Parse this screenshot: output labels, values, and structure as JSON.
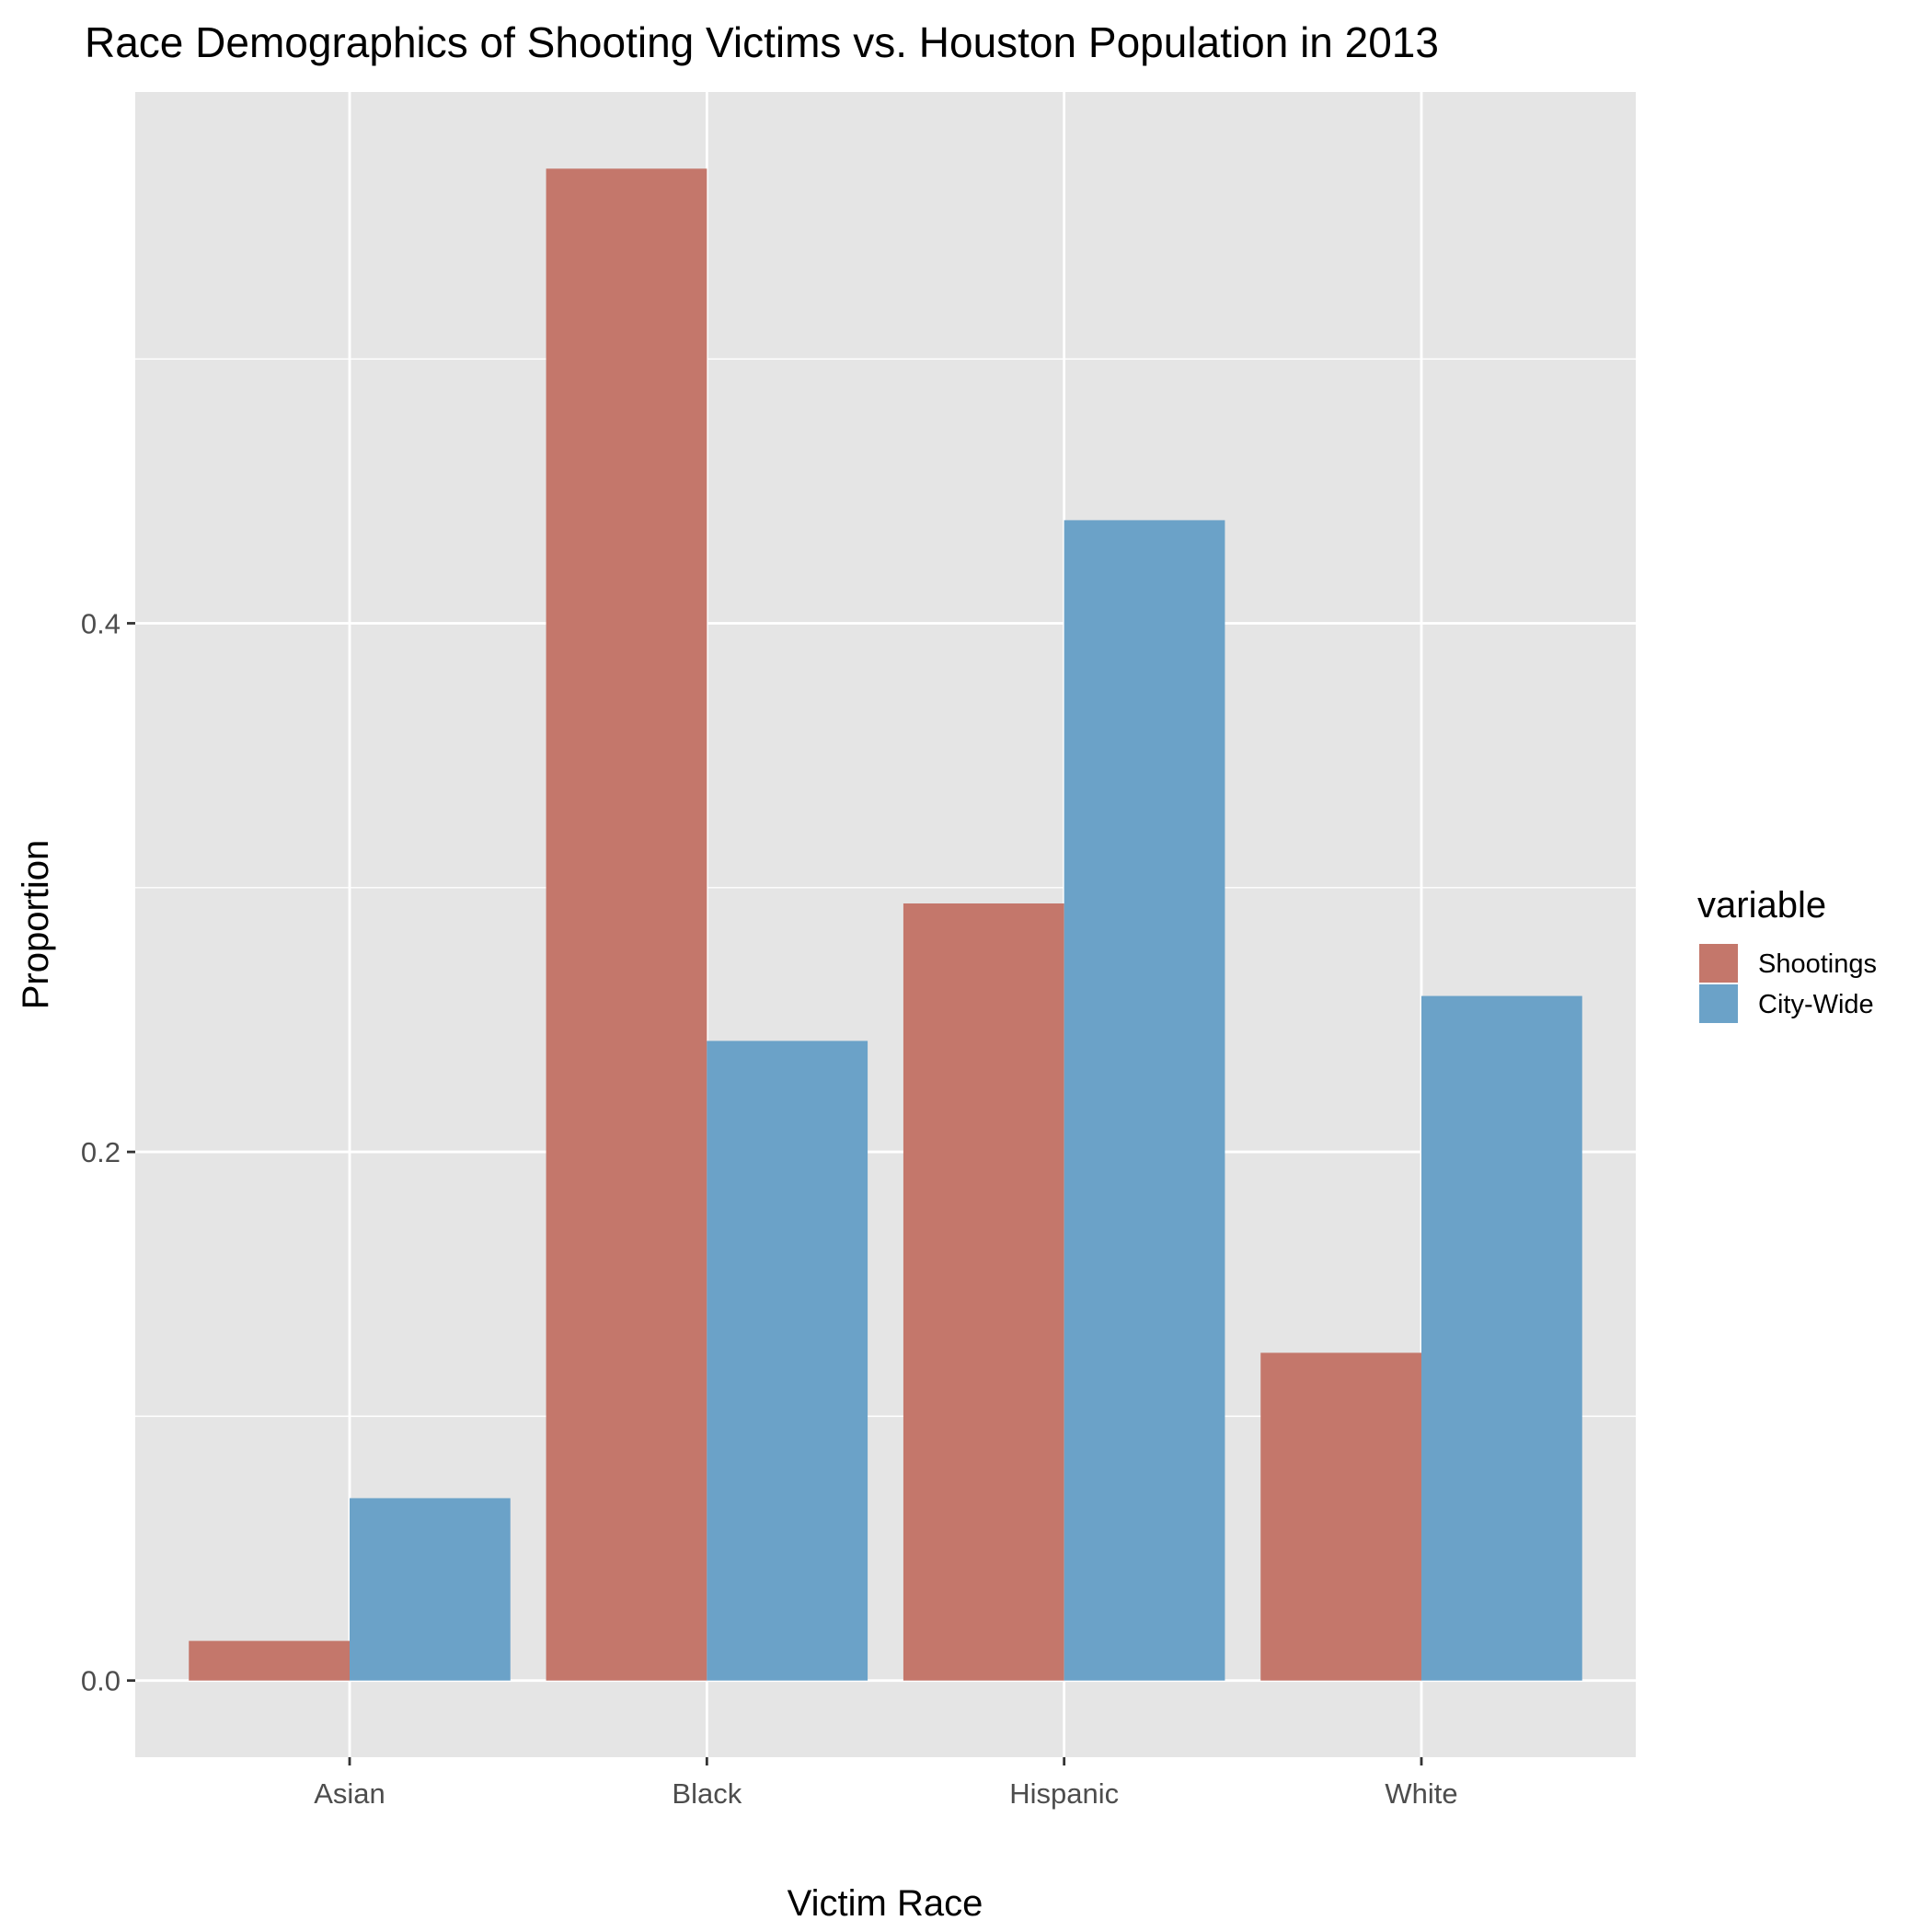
{
  "chart_data": {
    "type": "bar",
    "title": "Race Demographics of Shooting Victims vs. Houston Population in 2013",
    "xlabel": "Victim Race",
    "ylabel": "Proportion",
    "categories": [
      "Asian",
      "Black",
      "Hispanic",
      "White"
    ],
    "series": [
      {
        "name": "Shootings",
        "color": "#c4776b",
        "values": [
          0.015,
          0.572,
          0.294,
          0.124
        ]
      },
      {
        "name": "City-Wide",
        "color": "#6ba2c8",
        "values": [
          0.069,
          0.242,
          0.439,
          0.259
        ]
      }
    ],
    "yticks": [
      0.0,
      0.2,
      0.4
    ],
    "ytick_labels": [
      "0.0",
      "0.2",
      "0.4"
    ],
    "ylim": [
      -0.029,
      0.601
    ],
    "grid": true,
    "legend": {
      "title": "variable",
      "position": "right"
    },
    "panel_color": "#e5e5e5"
  }
}
